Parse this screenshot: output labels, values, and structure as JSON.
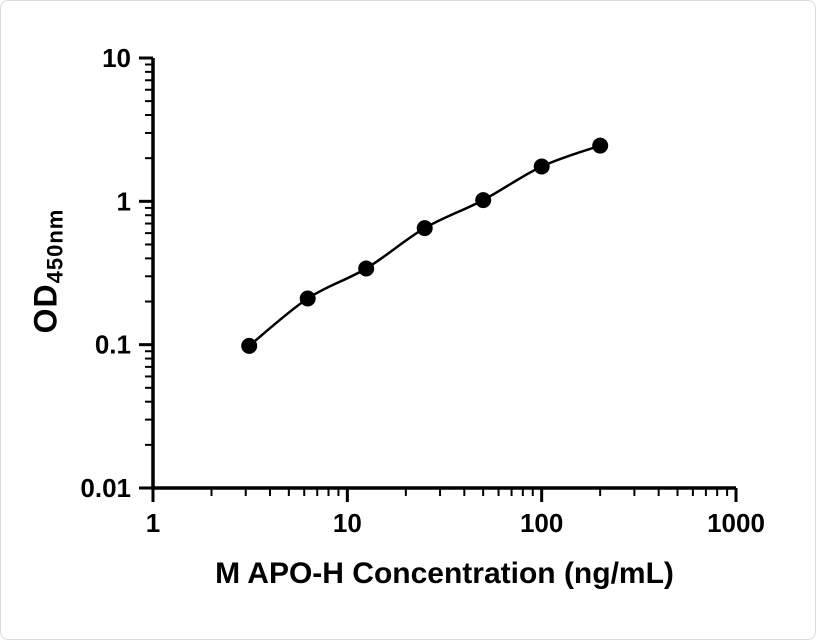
{
  "figure": {
    "background_color": "#ffffff",
    "ink_color": "#000000"
  },
  "chart_data": {
    "type": "scatter",
    "title": "",
    "xlabel": "M APO-H Concentration (ng/mL)",
    "ylabel": "OD450nm",
    "ylabel_main": "OD",
    "ylabel_sub": "450nm",
    "xscale": "log",
    "yscale": "log",
    "xlim": [
      1,
      1000
    ],
    "ylim": [
      0.01,
      10
    ],
    "x_ticks": [
      1,
      10,
      100,
      1000
    ],
    "y_ticks": [
      0.01,
      0.1,
      1,
      10
    ],
    "x": [
      3.125,
      6.25,
      12.5,
      25,
      50,
      100,
      200
    ],
    "y": [
      0.098,
      0.21,
      0.34,
      0.65,
      1.02,
      1.75,
      2.45
    ],
    "marker": "filled-circle",
    "marker_color": "#000000",
    "line_color": "#000000",
    "line_style": "smooth",
    "grid": false,
    "legend": "none"
  }
}
